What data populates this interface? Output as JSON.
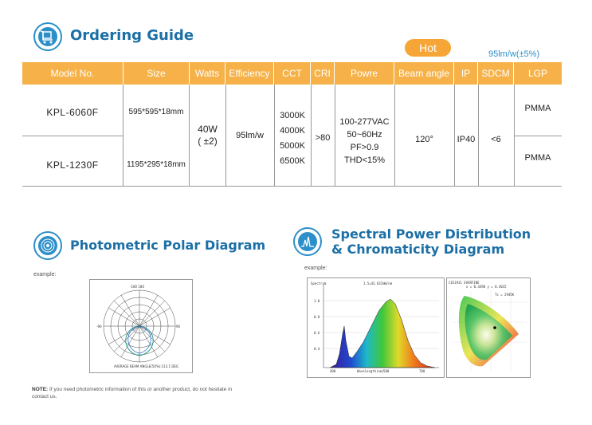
{
  "ordering": {
    "title": "Ordering Guide",
    "hot_badge": "Hot",
    "efficiency_note": "95lm/w(±5%)",
    "headers": [
      "Model No.",
      "Size",
      "Watts",
      "Efficiency",
      "CCT",
      "CRI",
      "Powre",
      "Beam angle",
      "IP",
      "SDCM",
      "LGP"
    ],
    "rows": [
      {
        "model": "KPL-6060F",
        "size": "595*595*18mm",
        "lgp": "PMMA"
      },
      {
        "model": "KPL-1230F",
        "size": "1195*295*18mm",
        "lgp": "PMMA"
      }
    ],
    "shared": {
      "watts": [
        "40W",
        "( ±2)"
      ],
      "efficiency": "95lm/w",
      "cct": [
        "3000K",
        "4000K",
        "5000K",
        "6500K"
      ],
      "cri": ">80",
      "power": [
        "100-277VAC",
        "50~60Hz",
        "PF>0.9",
        "THD<15%"
      ],
      "beam": "120°",
      "ip": "IP40",
      "sdcm": "<6"
    }
  },
  "photometric": {
    "title": "Photometric Polar Diagram",
    "example": "example:",
    "note_label": "NOTE:",
    "note_text": "If you need photometric information of this or another product, do not hesitate in contact us."
  },
  "spectral": {
    "title_line1": "Spectral Power Distribution",
    "title_line2": "& Chromaticity Diagram",
    "example": "example:"
  },
  "colors": {
    "accent": "#2c8fc9",
    "header_orange": "#f6b249",
    "title_blue": "#1b6fa6",
    "note_blue": "#2c8fc9"
  }
}
